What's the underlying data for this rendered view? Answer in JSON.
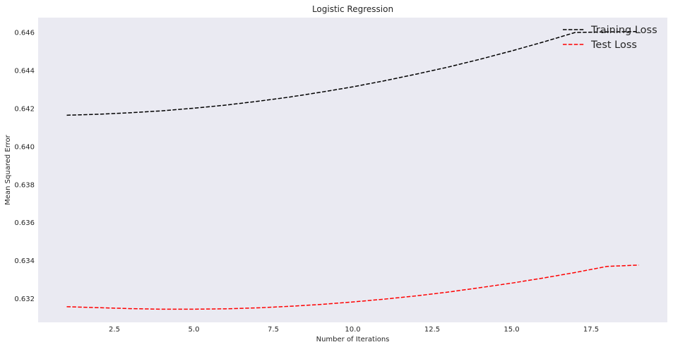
{
  "chart_data": {
    "type": "line",
    "title": "Logistic Regression",
    "xlabel": "Number of Iterations",
    "ylabel": "Mean Squared Error",
    "xlim": [
      0.1,
      19.9
    ],
    "ylim": [
      0.63076,
      0.64678
    ],
    "xticks": [
      "2.5",
      "5.0",
      "7.5",
      "10.0",
      "12.5",
      "15.0",
      "17.5"
    ],
    "xtick_values": [
      2.5,
      5.0,
      7.5,
      10.0,
      12.5,
      15.0,
      17.5
    ],
    "yticks": [
      "0.632",
      "0.634",
      "0.636",
      "0.638",
      "0.640",
      "0.642",
      "0.644",
      "0.646"
    ],
    "ytick_values": [
      0.632,
      0.634,
      0.636,
      0.638,
      0.64,
      0.642,
      0.644,
      0.646
    ],
    "grid": false,
    "legend_position": "top-right",
    "background_color": "#eaeaf2",
    "x": [
      1,
      2,
      3,
      4,
      5,
      6,
      7,
      8,
      9,
      10,
      11,
      12,
      13,
      14,
      15,
      16,
      17,
      18,
      19
    ],
    "series": [
      {
        "name": "Training Loss",
        "color": "#000000",
        "style": "dashed",
        "values": [
          0.64165,
          0.6417,
          0.64178,
          0.64188,
          0.64202,
          0.64218,
          0.64238,
          0.6426,
          0.64286,
          0.64314,
          0.64346,
          0.64381,
          0.64418,
          0.64459,
          0.64503,
          0.6455,
          0.646,
          0.64603,
          0.64605
        ]
      },
      {
        "name": "Test Loss",
        "color": "#ff0000",
        "style": "dashed",
        "values": [
          0.63158,
          0.63153,
          0.63148,
          0.63145,
          0.63145,
          0.63147,
          0.63152,
          0.6316,
          0.6317,
          0.63183,
          0.63198,
          0.63215,
          0.63235,
          0.63258,
          0.63282,
          0.63309,
          0.63338,
          0.6337,
          0.63377
        ]
      }
    ]
  }
}
